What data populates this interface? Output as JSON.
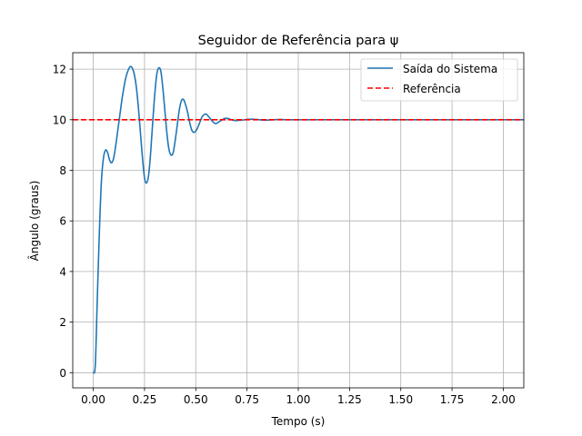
{
  "chart_data": {
    "type": "line",
    "title": "Seguidor de Referência para ψ",
    "xlabel": "Tempo (s)",
    "ylabel": "Ângulo (graus)",
    "xlim": [
      -0.1,
      2.1
    ],
    "ylim": [
      -0.6,
      12.65
    ],
    "xticks": [
      0.0,
      0.25,
      0.5,
      0.75,
      1.0,
      1.25,
      1.5,
      1.75,
      2.0
    ],
    "xtick_labels": [
      "0.00",
      "0.25",
      "0.50",
      "0.75",
      "1.00",
      "1.25",
      "1.50",
      "1.75",
      "2.00"
    ],
    "yticks": [
      0,
      2,
      4,
      6,
      8,
      10,
      12
    ],
    "ytick_labels": [
      "0",
      "2",
      "4",
      "6",
      "8",
      "10",
      "12"
    ],
    "grid": true,
    "legend_position": "top-right",
    "series": [
      {
        "name": "Saída do Sistema",
        "color": "#1f77b4",
        "style": "solid",
        "x": [
          0.0,
          0.01,
          0.02,
          0.03,
          0.04,
          0.05,
          0.06,
          0.07,
          0.08,
          0.09,
          0.1,
          0.11,
          0.12,
          0.13,
          0.14,
          0.15,
          0.16,
          0.17,
          0.18,
          0.19,
          0.2,
          0.21,
          0.22,
          0.23,
          0.24,
          0.25,
          0.26,
          0.27,
          0.28,
          0.29,
          0.3,
          0.31,
          0.32,
          0.33,
          0.34,
          0.35,
          0.36,
          0.37,
          0.38,
          0.39,
          0.4,
          0.41,
          0.42,
          0.43,
          0.44,
          0.45,
          0.46,
          0.47,
          0.48,
          0.49,
          0.5,
          0.51,
          0.52,
          0.53,
          0.54,
          0.55,
          0.56,
          0.57,
          0.58,
          0.59,
          0.6,
          0.61,
          0.62,
          0.63,
          0.64,
          0.65,
          0.66,
          0.67,
          0.68,
          0.69,
          0.7,
          0.72,
          0.74,
          0.76,
          0.78,
          0.8,
          0.82,
          0.84,
          0.86,
          0.88,
          0.9,
          0.92,
          0.94,
          0.96,
          0.98,
          1.0,
          1.1,
          1.2,
          1.4,
          1.6,
          1.8,
          2.0,
          2.1
        ],
        "values": [
          0.0,
          0.3,
          3.0,
          5.6,
          7.6,
          8.5,
          8.8,
          8.7,
          8.4,
          8.3,
          8.5,
          9.0,
          9.6,
          10.2,
          10.8,
          11.3,
          11.7,
          11.95,
          12.1,
          12.05,
          11.8,
          11.3,
          10.5,
          9.5,
          8.5,
          7.7,
          7.5,
          7.8,
          8.7,
          9.9,
          11.0,
          11.8,
          12.05,
          11.9,
          11.2,
          10.3,
          9.4,
          8.8,
          8.6,
          8.7,
          9.2,
          9.8,
          10.4,
          10.75,
          10.8,
          10.6,
          10.3,
          9.9,
          9.6,
          9.5,
          9.55,
          9.7,
          9.9,
          10.1,
          10.2,
          10.22,
          10.15,
          10.05,
          9.95,
          9.87,
          9.85,
          9.9,
          9.95,
          10.0,
          10.05,
          10.06,
          10.04,
          10.01,
          9.98,
          9.97,
          9.97,
          9.98,
          10.0,
          10.02,
          10.02,
          10.01,
          9.99,
          9.98,
          9.99,
          10.0,
          10.01,
          10.01,
          10.0,
          10.0,
          10.0,
          10.0,
          10.0,
          10.0,
          10.0,
          10.0,
          10.0,
          10.0,
          10.0
        ]
      },
      {
        "name": "Referência",
        "color": "#ff0000",
        "style": "dashed",
        "x": [
          -0.1,
          2.1
        ],
        "values": [
          10,
          10
        ]
      }
    ]
  }
}
